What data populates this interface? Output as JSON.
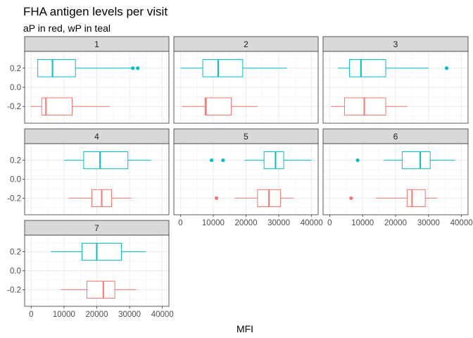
{
  "chart_data": {
    "type": "boxplot",
    "title": "FHA antigen levels  per visit",
    "subtitle": "aP in red, wP in teal",
    "xlabel": "MFI",
    "ylabel": "",
    "x_ticks": [
      0,
      10000,
      20000,
      30000,
      40000
    ],
    "x_tick_labels": [
      "0",
      "10000",
      "20000",
      "30000",
      "40000"
    ],
    "xlim": [
      -2000,
      42000
    ],
    "y_ticks": [
      0.2,
      0.0,
      -0.2
    ],
    "y_tick_labels": [
      "0.2",
      "0.0",
      "-0.2"
    ],
    "ylim": [
      -0.375,
      0.375
    ],
    "grid": true,
    "facet_labels": [
      "1",
      "2",
      "3",
      "4",
      "5",
      "6",
      "7"
    ],
    "colors": {
      "aP": "#f8766d",
      "wP": "#00bfc4"
    },
    "panels": [
      {
        "visit": "1",
        "aP": {
          "y": -0.2,
          "min": -200,
          "q1": 3200,
          "median": 4500,
          "q3": 12500,
          "max": 24000,
          "outliers": []
        },
        "wP": {
          "y": 0.2,
          "min": 1800,
          "q1": 2000,
          "median": 6500,
          "q3": 13500,
          "max": 30500,
          "outliers": [
            31000,
            32500
          ]
        }
      },
      {
        "visit": "2",
        "aP": {
          "y": -0.2,
          "min": 400,
          "q1": 7500,
          "median": 7800,
          "q3": 15500,
          "max": 23500,
          "outliers": []
        },
        "wP": {
          "y": 0.2,
          "min": 0,
          "q1": 6800,
          "median": 11500,
          "q3": 19000,
          "max": 32500,
          "outliers": []
        }
      },
      {
        "visit": "3",
        "aP": {
          "y": -0.2,
          "min": 400,
          "q1": 4500,
          "median": 10500,
          "q3": 17000,
          "max": 23500,
          "outliers": []
        },
        "wP": {
          "y": 0.2,
          "min": 2500,
          "q1": 6000,
          "median": 9500,
          "q3": 17000,
          "max": 30000,
          "outliers": [
            35500
          ]
        }
      },
      {
        "visit": "4",
        "aP": {
          "y": -0.2,
          "min": 11500,
          "q1": 18500,
          "median": 21500,
          "q3": 24500,
          "max": 30500,
          "outliers": []
        },
        "wP": {
          "y": 0.2,
          "min": 10000,
          "q1": 16000,
          "median": 21000,
          "q3": 29500,
          "max": 36500,
          "outliers": []
        }
      },
      {
        "visit": "5",
        "aP": {
          "y": -0.2,
          "min": 16500,
          "q1": 23500,
          "median": 27000,
          "q3": 30500,
          "max": 34500,
          "outliers": [
            11000
          ]
        },
        "wP": {
          "y": 0.2,
          "min": 19500,
          "q1": 25500,
          "median": 29000,
          "q3": 31500,
          "max": 40000,
          "outliers": [
            9500,
            13000
          ]
        }
      },
      {
        "visit": "6",
        "aP": {
          "y": -0.2,
          "min": 14000,
          "q1": 23500,
          "median": 25000,
          "q3": 29000,
          "max": 32500,
          "outliers": [
            6500
          ]
        },
        "wP": {
          "y": 0.2,
          "min": 16500,
          "q1": 22000,
          "median": 27500,
          "q3": 30500,
          "max": 38000,
          "outliers": [
            8500
          ]
        }
      },
      {
        "visit": "7",
        "aP": {
          "y": -0.2,
          "min": 9000,
          "q1": 17000,
          "median": 22000,
          "q3": 25500,
          "max": 32000,
          "outliers": []
        },
        "wP": {
          "y": 0.2,
          "min": 6000,
          "q1": 15500,
          "median": 20000,
          "q3": 27500,
          "max": 35000,
          "outliers": []
        }
      }
    ]
  }
}
